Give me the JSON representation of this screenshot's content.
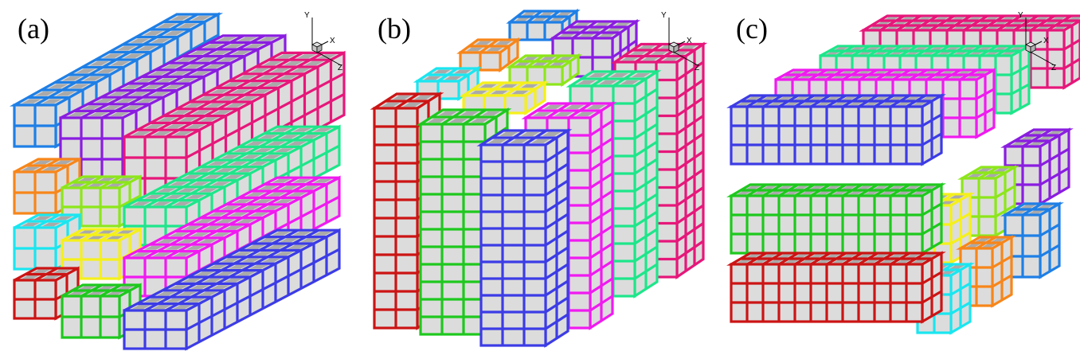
{
  "figure": {
    "panels": [
      {
        "label": "(a)",
        "axes": {
          "y": "Y",
          "x": "X",
          "z": "Z"
        },
        "blocks": [
          {
            "name": "blue-long-back",
            "color": "#1e7fe6",
            "nx": 2,
            "ny": 2,
            "nz": 12
          },
          {
            "name": "purple-long",
            "color": "#8a1de0",
            "nx": 3,
            "ny": 3,
            "nz": 12
          },
          {
            "name": "pink-long",
            "color": "#e6177a",
            "nx": 3,
            "ny": 3,
            "nz": 12
          },
          {
            "name": "orange-cube",
            "color": "#f7861a",
            "nx": 2,
            "ny": 2,
            "nz": 2
          },
          {
            "name": "lime-cube",
            "color": "#8de61a",
            "nx": 3,
            "ny": 2,
            "nz": 2
          },
          {
            "name": "spring-green-long",
            "color": "#1ee68a",
            "nx": 3,
            "ny": 2,
            "nz": 12
          },
          {
            "name": "cyan-cube",
            "color": "#1ae6f0",
            "nx": 2,
            "ny": 2,
            "nz": 2
          },
          {
            "name": "yellow-cube",
            "color": "#f5f01a",
            "nx": 3,
            "ny": 2,
            "nz": 2
          },
          {
            "name": "magenta-long",
            "color": "#f01af0",
            "nx": 3,
            "ny": 2,
            "nz": 12
          },
          {
            "name": "red-cube",
            "color": "#cc1414",
            "nx": 2,
            "ny": 2,
            "nz": 2
          },
          {
            "name": "green-cube",
            "color": "#1ec81e",
            "nx": 3,
            "ny": 2,
            "nz": 2
          },
          {
            "name": "blue-long-front",
            "color": "#3c3ce6",
            "nx": 3,
            "ny": 2,
            "nz": 12
          }
        ]
      },
      {
        "label": "(b)",
        "axes": {
          "y": "Y",
          "x": "X",
          "z": "Z"
        },
        "blocks": [
          {
            "name": "blue-column-back",
            "color": "#1e7fe6",
            "nx": 3,
            "ny": 1,
            "nz": 2
          },
          {
            "name": "purple-column",
            "color": "#8a1de0",
            "nx": 3,
            "ny": 2,
            "nz": 3
          },
          {
            "name": "pink-column",
            "color": "#e6177a",
            "nx": 3,
            "ny": 12,
            "nz": 3
          },
          {
            "name": "orange-cube",
            "color": "#f7861a",
            "nx": 2,
            "ny": 1,
            "nz": 2
          },
          {
            "name": "lime-cube",
            "color": "#8de61a",
            "nx": 3,
            "ny": 1,
            "nz": 2
          },
          {
            "name": "spring-green-column",
            "color": "#1ee68a",
            "nx": 3,
            "ny": 12,
            "nz": 2
          },
          {
            "name": "cyan-cube",
            "color": "#1ae6f0",
            "nx": 2,
            "ny": 1,
            "nz": 2
          },
          {
            "name": "yellow-cube",
            "color": "#f5f01a",
            "nx": 3,
            "ny": 1,
            "nz": 2
          },
          {
            "name": "magenta-column",
            "color": "#f01af0",
            "nx": 3,
            "ny": 12,
            "nz": 2
          },
          {
            "name": "red-column",
            "color": "#cc1414",
            "nx": 2,
            "ny": 12,
            "nz": 2
          },
          {
            "name": "green-column",
            "color": "#1ec81e",
            "nx": 3,
            "ny": 12,
            "nz": 2
          },
          {
            "name": "blue-column-front",
            "color": "#3c3ce6",
            "nx": 3,
            "ny": 12,
            "nz": 2
          }
        ]
      },
      {
        "label": "(c)",
        "axes": {
          "y": "Y",
          "x": "X",
          "z": "Z"
        },
        "blocks": [
          {
            "name": "pink-slab",
            "color": "#e6177a",
            "nx": 12,
            "ny": 3,
            "nz": 3
          },
          {
            "name": "spring-green-slab",
            "color": "#1ee68a",
            "nx": 12,
            "ny": 3,
            "nz": 2
          },
          {
            "name": "magenta-slab",
            "color": "#f01af0",
            "nx": 12,
            "ny": 3,
            "nz": 2
          },
          {
            "name": "purple-cube",
            "color": "#8a1de0",
            "nx": 2,
            "ny": 3,
            "nz": 3
          },
          {
            "name": "lime-cube",
            "color": "#8de61a",
            "nx": 2,
            "ny": 3,
            "nz": 2
          },
          {
            "name": "blue-cube-back",
            "color": "#1e7fe6",
            "nx": 2,
            "ny": 3,
            "nz": 2
          },
          {
            "name": "yellow-cube",
            "color": "#f5f01a",
            "nx": 2,
            "ny": 3,
            "nz": 2
          },
          {
            "name": "orange-cube",
            "color": "#f7861a",
            "nx": 2,
            "ny": 3,
            "nz": 2
          },
          {
            "name": "cyan-cube",
            "color": "#1ae6f0",
            "nx": 2,
            "ny": 3,
            "nz": 2
          },
          {
            "name": "blue-slab",
            "color": "#3c3ce6",
            "nx": 12,
            "ny": 3,
            "nz": 2
          },
          {
            "name": "green-slab",
            "color": "#1ec81e",
            "nx": 12,
            "ny": 3,
            "nz": 2
          },
          {
            "name": "red-slab",
            "color": "#cc1414",
            "nx": 12,
            "ny": 3,
            "nz": 2
          }
        ]
      }
    ],
    "face_color": "#dcdcdc",
    "top_cell_color": "#a9a9a9"
  }
}
